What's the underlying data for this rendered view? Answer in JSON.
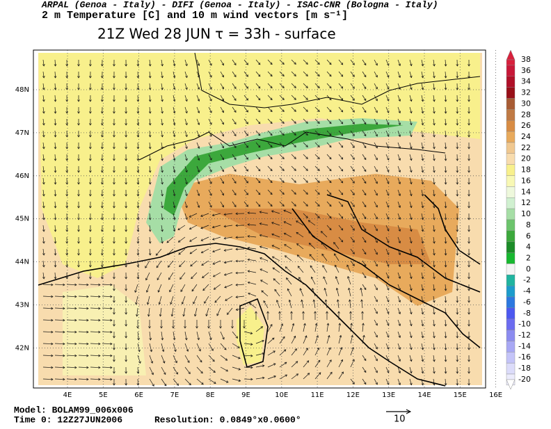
{
  "header": {
    "credits": "ARPAL (Genoa - Italy)  -  DIFI (Genoa - Italy)  -  ISAC-CNR (Bologna - Italy)",
    "field": "2 m Temperature [C] and 10 m wind vectors [m s⁻¹]",
    "time": "21Z Wed 28 JUN  τ = 33h  -  surface"
  },
  "map": {
    "lon_labels": [
      "4E",
      "5E",
      "6E",
      "7E",
      "8E",
      "9E",
      "10E",
      "11E",
      "12E",
      "13E",
      "14E",
      "15E",
      "16E"
    ],
    "lat_labels": [
      "48N",
      "47N",
      "46N",
      "45N",
      "44N",
      "43N",
      "42N"
    ]
  },
  "colorbar": {
    "levels": [
      38,
      36,
      34,
      32,
      30,
      28,
      26,
      24,
      22,
      20,
      18,
      16,
      14,
      12,
      10,
      8,
      6,
      4,
      2,
      0,
      -2,
      -4,
      -6,
      -8,
      -10,
      -12,
      -14,
      -16,
      -18,
      -20
    ],
    "colors": [
      "#d8203c",
      "#c81838",
      "#b01028",
      "#981018",
      "#a85c34",
      "#c07a44",
      "#d88c44",
      "#e8aa5c",
      "#f0c890",
      "#f8dcae",
      "#f8f08c",
      "#f8f8b4",
      "#eef8dc",
      "#d0f0d0",
      "#a6dea6",
      "#6cc46c",
      "#3ca83c",
      "#1c8c28",
      "#18b830",
      "#f4f4f4",
      "#20b4a0",
      "#1c9ccc",
      "#2c78e0",
      "#4c58f0",
      "#6c6cf0",
      "#8c8cf0",
      "#a8a8f4",
      "#c4c4f8",
      "#dcdcfa",
      "#ececfc"
    ]
  },
  "footer": {
    "model": "Model: BOLAM99_006x006",
    "time0": "Time 0: 12Z27JUN2006",
    "resolution": "Resolution: 0.0849°x0.0600°",
    "vector_scale": "10"
  }
}
